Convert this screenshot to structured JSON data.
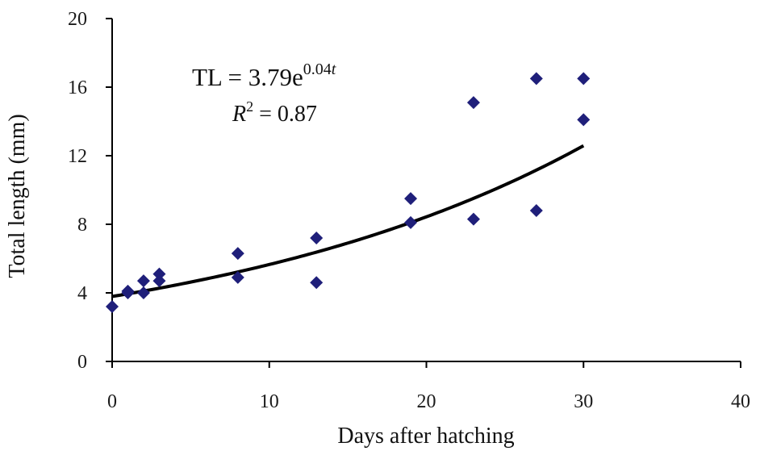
{
  "chart_data": {
    "type": "scatter",
    "title": "",
    "xlabel": "Days after hatching",
    "ylabel": "Total length (mm)",
    "xlim": [
      0,
      40
    ],
    "ylim": [
      0,
      20
    ],
    "x_ticks": [
      "0",
      "10",
      "20",
      "30",
      "40"
    ],
    "y_ticks": [
      "0",
      "4",
      "8",
      "12",
      "16",
      "20"
    ],
    "grid": false,
    "legend": "none",
    "series": [
      {
        "type": "scatter",
        "marker": "diamond",
        "color": "#1F1F7A",
        "points": [
          [
            0,
            3.2
          ],
          [
            1,
            4.1
          ],
          [
            1,
            4.0
          ],
          [
            2,
            4.7
          ],
          [
            2,
            4.0
          ],
          [
            3,
            5.1
          ],
          [
            3,
            4.7
          ],
          [
            8,
            6.3
          ],
          [
            8,
            4.9
          ],
          [
            13,
            7.2
          ],
          [
            13,
            4.6
          ],
          [
            19,
            9.5
          ],
          [
            19,
            8.1
          ],
          [
            23,
            15.1
          ],
          [
            23,
            8.3
          ],
          [
            27,
            16.5
          ],
          [
            27,
            8.8
          ],
          [
            30,
            16.5
          ],
          [
            30,
            14.1
          ]
        ]
      },
      {
        "type": "line",
        "fit": "exponential",
        "color": "#000000",
        "a": 3.79,
        "b": 0.04,
        "x_range": [
          0,
          30
        ]
      }
    ],
    "annotations": {
      "equation_main": "TL = 3.79e",
      "equation_exp": "0.04",
      "equation_var": "t",
      "r2_label": "R",
      "r2_sup": "2",
      "r2_value": " = 0.87"
    }
  }
}
